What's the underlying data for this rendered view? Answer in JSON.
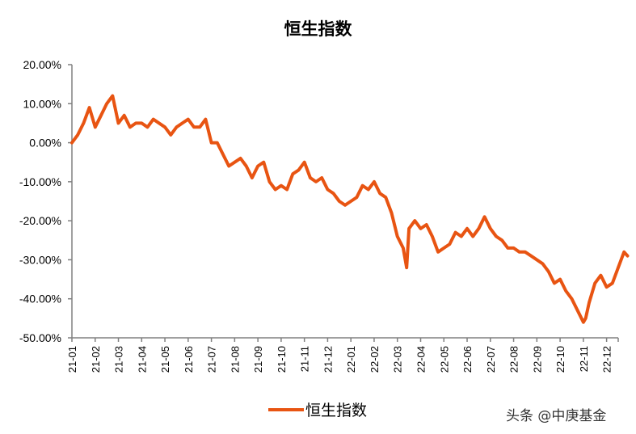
{
  "chart_data": {
    "type": "line",
    "title": "恒生指数",
    "xlabel": "",
    "ylabel": "",
    "ylim": [
      -0.5,
      0.2
    ],
    "yticks": [
      "20.00%",
      "10.00%",
      "0.00%",
      "-10.00%",
      "-20.00%",
      "-30.00%",
      "-40.00%",
      "-50.00%"
    ],
    "ytick_values": [
      0.2,
      0.1,
      0.0,
      -0.1,
      -0.2,
      -0.3,
      -0.4,
      -0.5
    ],
    "categories": [
      "21-01",
      "21-02",
      "21-03",
      "21-04",
      "21-05",
      "21-06",
      "21-07",
      "21-08",
      "21-09",
      "21-10",
      "21-11",
      "21-12",
      "22-01",
      "22-02",
      "22-03",
      "22-04",
      "22-05",
      "22-06",
      "22-07",
      "22-08",
      "22-09",
      "22-10",
      "22-11",
      "22-12"
    ],
    "grid": false,
    "legend_position": "bottom",
    "series": [
      {
        "name": "恒生指数",
        "color": "#e85412",
        "x_month_index": [
          0,
          0.25,
          0.5,
          0.75,
          1.0,
          1.25,
          1.5,
          1.75,
          2.0,
          2.25,
          2.5,
          2.75,
          3.0,
          3.25,
          3.5,
          3.75,
          4.0,
          4.25,
          4.5,
          4.75,
          5.0,
          5.25,
          5.5,
          5.75,
          6.0,
          6.25,
          6.5,
          6.75,
          7.0,
          7.25,
          7.5,
          7.75,
          8.0,
          8.25,
          8.5,
          8.75,
          9.0,
          9.25,
          9.5,
          9.75,
          10.0,
          10.25,
          10.5,
          10.75,
          11.0,
          11.25,
          11.5,
          11.75,
          12.0,
          12.25,
          12.5,
          12.75,
          13.0,
          13.25,
          13.5,
          13.75,
          14.0,
          14.25,
          14.4,
          14.5,
          14.75,
          15.0,
          15.25,
          15.5,
          15.75,
          16.0,
          16.25,
          16.5,
          16.75,
          17.0,
          17.25,
          17.5,
          17.75,
          18.0,
          18.25,
          18.5,
          18.75,
          19.0,
          19.25,
          19.5,
          19.75,
          20.0,
          20.25,
          20.5,
          20.75,
          21.0,
          21.25,
          21.5,
          21.75,
          22.0,
          22.1,
          22.25,
          22.5,
          22.75,
          23.0,
          23.25,
          23.5,
          23.75,
          23.9
        ],
        "values": [
          0.0,
          0.02,
          0.05,
          0.09,
          0.04,
          0.07,
          0.1,
          0.12,
          0.05,
          0.07,
          0.04,
          0.05,
          0.05,
          0.04,
          0.06,
          0.05,
          0.04,
          0.02,
          0.04,
          0.05,
          0.06,
          0.04,
          0.04,
          0.06,
          0.0,
          0.0,
          -0.03,
          -0.06,
          -0.05,
          -0.04,
          -0.06,
          -0.09,
          -0.06,
          -0.05,
          -0.1,
          -0.12,
          -0.11,
          -0.12,
          -0.08,
          -0.07,
          -0.05,
          -0.09,
          -0.1,
          -0.09,
          -0.12,
          -0.13,
          -0.15,
          -0.16,
          -0.15,
          -0.14,
          -0.11,
          -0.12,
          -0.1,
          -0.13,
          -0.14,
          -0.18,
          -0.24,
          -0.27,
          -0.32,
          -0.22,
          -0.2,
          -0.22,
          -0.21,
          -0.24,
          -0.28,
          -0.27,
          -0.26,
          -0.23,
          -0.24,
          -0.22,
          -0.24,
          -0.22,
          -0.19,
          -0.22,
          -0.24,
          -0.25,
          -0.27,
          -0.27,
          -0.28,
          -0.28,
          -0.29,
          -0.3,
          -0.31,
          -0.33,
          -0.36,
          -0.35,
          -0.38,
          -0.4,
          -0.43,
          -0.46,
          -0.45,
          -0.41,
          -0.36,
          -0.34,
          -0.37,
          -0.36,
          -0.32,
          -0.28,
          -0.29
        ]
      }
    ]
  },
  "legend": {
    "label": "恒生指数"
  },
  "watermark": "头条 @中庚基金"
}
